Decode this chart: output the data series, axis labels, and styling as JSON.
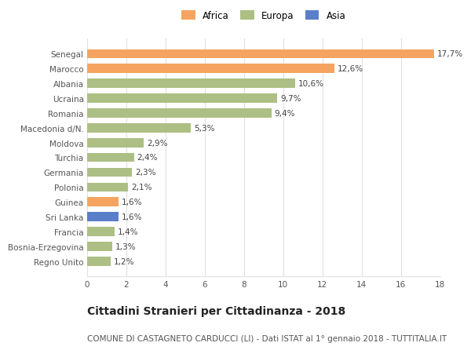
{
  "countries": [
    "Senegal",
    "Marocco",
    "Albania",
    "Ucraina",
    "Romania",
    "Macedonia d/N.",
    "Moldova",
    "Turchia",
    "Germania",
    "Polonia",
    "Guinea",
    "Sri Lanka",
    "Francia",
    "Bosnia-Erzegovina",
    "Regno Unito"
  ],
  "values": [
    17.7,
    12.6,
    10.6,
    9.7,
    9.4,
    5.3,
    2.9,
    2.4,
    2.3,
    2.1,
    1.6,
    1.6,
    1.4,
    1.3,
    1.2
  ],
  "labels": [
    "17,7%",
    "12,6%",
    "10,6%",
    "9,7%",
    "9,4%",
    "5,3%",
    "2,9%",
    "2,4%",
    "2,3%",
    "2,1%",
    "1,6%",
    "1,6%",
    "1,4%",
    "1,3%",
    "1,2%"
  ],
  "continents": [
    "Africa",
    "Africa",
    "Europa",
    "Europa",
    "Europa",
    "Europa",
    "Europa",
    "Europa",
    "Europa",
    "Europa",
    "Africa",
    "Asia",
    "Europa",
    "Europa",
    "Europa"
  ],
  "colors": {
    "Africa": "#F4A460",
    "Europa": "#ADBF84",
    "Asia": "#5B7EC9"
  },
  "title": "Cittadini Stranieri per Cittadinanza - 2018",
  "subtitle": "COMUNE DI CASTAGNETO CARDUCCI (LI) - Dati ISTAT al 1° gennaio 2018 - TUTTITALIA.IT",
  "xlim": [
    0,
    18
  ],
  "xticks": [
    0,
    2,
    4,
    6,
    8,
    10,
    12,
    14,
    16,
    18
  ],
  "background_color": "#ffffff",
  "grid_color": "#e0e0e0",
  "bar_height": 0.62,
  "label_fontsize": 7.5,
  "title_fontsize": 10,
  "subtitle_fontsize": 7.5,
  "tick_fontsize": 7.5,
  "legend_fontsize": 8.5
}
